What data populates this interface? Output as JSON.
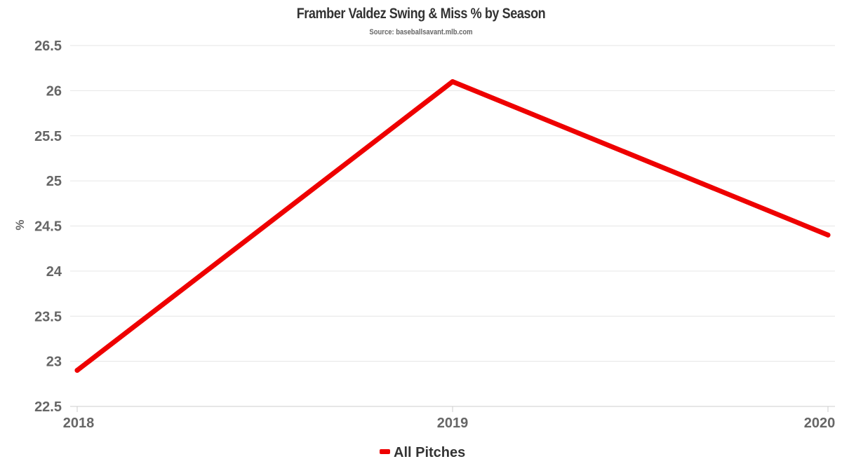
{
  "chart_data": {
    "type": "line",
    "title": "Framber Valdez Swing & Miss % by Season",
    "subtitle": "Source: baseballsavant.mlb.com",
    "xlabel": "",
    "ylabel": "%",
    "categories": [
      "2018",
      "2019",
      "2020"
    ],
    "series": [
      {
        "name": "All Pitches",
        "color": "#ee0000",
        "values": [
          22.9,
          26.1,
          24.4
        ]
      }
    ],
    "ylim": [
      22.5,
      26.5
    ],
    "yticks": [
      "22.5",
      "23",
      "23.5",
      "24",
      "24.5",
      "25",
      "25.5",
      "26",
      "26.5"
    ],
    "grid": true,
    "legend": "bottom-center"
  }
}
